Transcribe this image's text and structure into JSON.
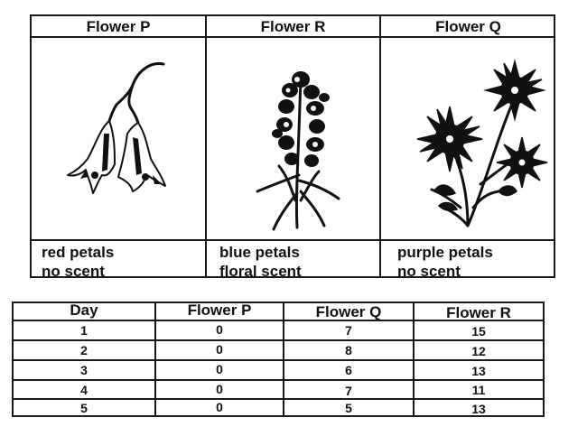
{
  "flowers": [
    {
      "heading": "Flower P",
      "icon": "bell-flower-icon",
      "trait_1": "red petals",
      "trait_2": "no scent"
    },
    {
      "heading": "Flower R",
      "icon": "snapdragon-flower-icon",
      "trait_1": "blue petals",
      "trait_2": "floral scent"
    },
    {
      "heading": "Flower Q",
      "icon": "daisy-flower-icon",
      "trait_1": "purple petals",
      "trait_2": "no scent"
    }
  ],
  "table": {
    "headers": [
      "Day",
      "Flower P",
      "Flower Q",
      "Flower R"
    ],
    "rows": [
      [
        "1",
        "0",
        "7",
        "15"
      ],
      [
        "2",
        "0",
        "8",
        "12"
      ],
      [
        "3",
        "0",
        "6",
        "13"
      ],
      [
        "4",
        "0",
        "7",
        "11"
      ],
      [
        "5",
        "0",
        "5",
        "13"
      ]
    ]
  }
}
